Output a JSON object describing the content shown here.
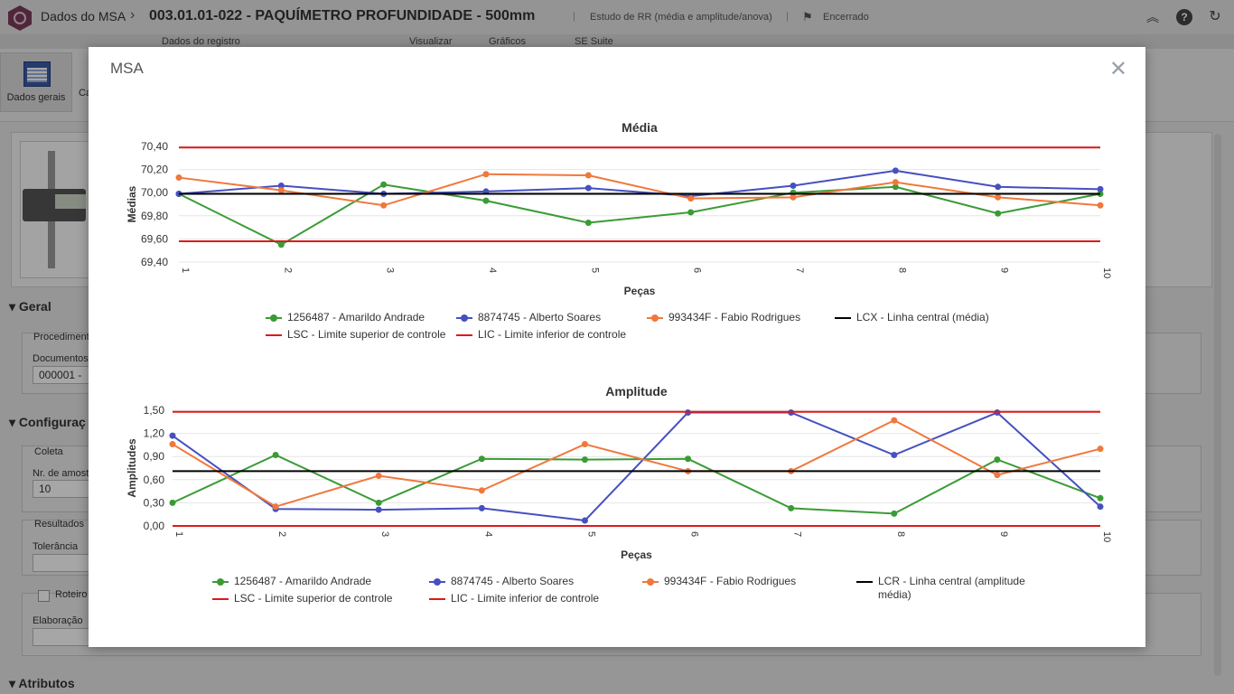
{
  "header": {
    "module": "Dados do MSA",
    "document": "003.01.01-022 - PAQUÍMETRO PROFUNDIDADE - 500mm",
    "study_type": "Estudo de RR (média e amplitude/anova)",
    "status": "Encerrado"
  },
  "ribbon_tabs": [
    "Dados do registro",
    "Visualizar",
    "Gráficos",
    "SE Suite"
  ],
  "ribbon": {
    "button_label": "Dados gerais",
    "second_label": "Ca"
  },
  "background_form": {
    "section_geral": "Geral",
    "procedimento": "Procediment",
    "documentos": "Documentos",
    "doc_value": "000001 -",
    "section_config": "Configuraç",
    "coleta": "Coleta",
    "nr_amostras": "Nr. de amost",
    "nr_value": "10",
    "resultados": "Resultados",
    "tolerancia": "Tolerância",
    "roteiro": "Roteiro",
    "elaboracao": "Elaboração",
    "section_atributos": "Atributos"
  },
  "modal": {
    "title": "MSA",
    "close": "✕"
  },
  "colors": {
    "green": "#3a9b35",
    "blue": "#4650c0",
    "orange": "#f0783c",
    "black": "#000000",
    "red": "#dd1a1a"
  },
  "chart_data": [
    {
      "type": "line",
      "title": "Média",
      "xlabel": "Peças",
      "ylabel": "Médias",
      "x": [
        1,
        2,
        3,
        4,
        5,
        6,
        7,
        8,
        9,
        10
      ],
      "ylim": [
        69.4,
        70.4
      ],
      "yticks": [
        "69,40",
        "69,60",
        "69,80",
        "70,00",
        "70,20",
        "70,40"
      ],
      "series": [
        {
          "name": "1256487 - Amarildo Andrade",
          "color": "green",
          "values": [
            69.99,
            69.55,
            70.07,
            69.93,
            69.74,
            69.83,
            70.0,
            70.05,
            69.82,
            69.99
          ],
          "markers": true
        },
        {
          "name": "8874745 - Alberto Soares",
          "color": "blue",
          "values": [
            69.99,
            70.06,
            69.99,
            70.01,
            70.04,
            69.97,
            70.06,
            70.19,
            70.05,
            70.03
          ],
          "markers": true
        },
        {
          "name": "993434F - Fabio Rodrigues",
          "color": "orange",
          "values": [
            70.13,
            70.02,
            69.89,
            70.16,
            70.15,
            69.95,
            69.96,
            70.09,
            69.96,
            69.89
          ],
          "markers": true
        },
        {
          "name": "LCX - Linha central (média)",
          "color": "black",
          "values": [
            69.99,
            69.99,
            69.99,
            69.99,
            69.99,
            69.99,
            69.99,
            69.99,
            69.99,
            69.99
          ],
          "markers": false
        },
        {
          "name": "LSC - Limite superior de controle",
          "color": "red",
          "values": [
            70.39,
            70.39,
            70.39,
            70.39,
            70.39,
            70.39,
            70.39,
            70.39,
            70.39,
            70.39
          ],
          "markers": false
        },
        {
          "name": "LIC - Limite inferior de controle",
          "color": "red",
          "values": [
            69.58,
            69.58,
            69.58,
            69.58,
            69.58,
            69.58,
            69.58,
            69.58,
            69.58,
            69.58
          ],
          "markers": false
        }
      ]
    },
    {
      "type": "line",
      "title": "Amplitude",
      "xlabel": "Peças",
      "ylabel": "Amplitudes",
      "x": [
        1,
        2,
        3,
        4,
        5,
        6,
        7,
        8,
        9,
        10
      ],
      "ylim": [
        0.0,
        1.5
      ],
      "yticks": [
        "0,00",
        "0,30",
        "0,60",
        "0,90",
        "1,20",
        "1,50"
      ],
      "series": [
        {
          "name": "1256487 - Amarildo Andrade",
          "color": "green",
          "values": [
            0.3,
            0.92,
            0.3,
            0.87,
            0.86,
            0.87,
            0.23,
            0.16,
            0.86,
            0.36
          ],
          "markers": true
        },
        {
          "name": "8874745 - Alberto Soares",
          "color": "blue",
          "values": [
            1.17,
            0.22,
            0.21,
            0.23,
            0.07,
            1.47,
            1.47,
            0.92,
            1.47,
            0.25
          ],
          "markers": true
        },
        {
          "name": "993434F - Fabio Rodrigues",
          "color": "orange",
          "values": [
            1.06,
            0.25,
            0.65,
            0.46,
            1.06,
            0.71,
            0.71,
            1.37,
            0.66,
            1.0
          ],
          "markers": true
        },
        {
          "name": "LCR - Linha central (amplitude média)",
          "color": "black",
          "values": [
            0.71,
            0.71,
            0.71,
            0.71,
            0.71,
            0.71,
            0.71,
            0.71,
            0.71,
            0.71
          ],
          "markers": false
        },
        {
          "name": "LSC - Limite superior de controle",
          "color": "red",
          "values": [
            1.48,
            1.48,
            1.48,
            1.48,
            1.48,
            1.48,
            1.48,
            1.48,
            1.48,
            1.48
          ],
          "markers": false
        },
        {
          "name": "LIC - Limite inferior de controle",
          "color": "red",
          "values": [
            0.0,
            0.0,
            0.0,
            0.0,
            0.0,
            0.0,
            0.0,
            0.0,
            0.0,
            0.0
          ],
          "markers": false
        }
      ]
    }
  ]
}
